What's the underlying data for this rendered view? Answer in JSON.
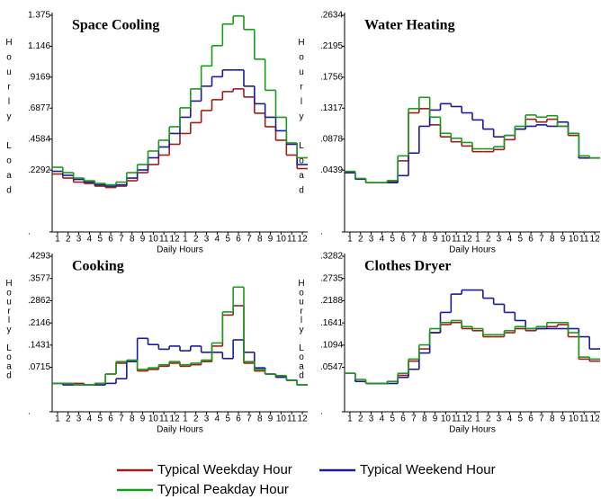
{
  "chart_data": [
    {
      "type": "line",
      "title": "Space Cooling",
      "y_label": "Hourly Load",
      "x_label": "Daily Hours",
      "categories": [
        "1",
        "2",
        "3",
        "4",
        "5",
        "6",
        "7",
        "8",
        "9",
        "10",
        "11",
        "12",
        "1",
        "2",
        "3",
        "4",
        "5",
        "6",
        "7",
        "8",
        "9",
        "10",
        "11",
        "12"
      ],
      "ylim": [
        -0.2292,
        1.375
      ],
      "yticks": [
        {
          "value": -0.2292,
          "label": "."
        },
        {
          "value": 0.2292,
          "label": ".2292"
        },
        {
          "value": 0.4584,
          "label": ".4584"
        },
        {
          "value": 0.6877,
          "label": ".6877"
        },
        {
          "value": 0.9169,
          "label": ".9169"
        },
        1.146,
        1.375
      ],
      "series": [
        {
          "color": "#a01c1c",
          "values": [
            0.2,
            0.17,
            0.14,
            0.13,
            0.11,
            0.1,
            0.11,
            0.15,
            0.21,
            0.27,
            0.34,
            0.42,
            0.5,
            0.58,
            0.67,
            0.75,
            0.81,
            0.83,
            0.77,
            0.65,
            0.55,
            0.45,
            0.34,
            0.24
          ]
        },
        {
          "color": "#1a1a9a",
          "values": [
            0.22,
            0.19,
            0.16,
            0.14,
            0.12,
            0.11,
            0.12,
            0.17,
            0.23,
            0.32,
            0.4,
            0.5,
            0.62,
            0.74,
            0.85,
            0.92,
            0.97,
            0.97,
            0.85,
            0.72,
            0.62,
            0.52,
            0.42,
            0.27
          ]
        },
        {
          "color": "#1a9a1a",
          "values": [
            0.25,
            0.21,
            0.17,
            0.15,
            0.13,
            0.12,
            0.14,
            0.21,
            0.27,
            0.37,
            0.45,
            0.55,
            0.69,
            0.83,
            1.0,
            1.15,
            1.31,
            1.37,
            1.27,
            1.05,
            0.82,
            0.62,
            0.43,
            0.32
          ]
        }
      ]
    },
    {
      "type": "line",
      "title": "Water Heating",
      "y_label": "Hourly Load",
      "x_label": "Daily Hours",
      "categories": [
        "1",
        "2",
        "3",
        "4",
        "5",
        "6",
        "7",
        "8",
        "9",
        "10",
        "11",
        "12",
        "1",
        "2",
        "3",
        "4",
        "5",
        "6",
        "7",
        "8",
        "9",
        "10",
        "11",
        "12"
      ],
      "ylim": [
        -0.0439,
        0.2634
      ],
      "yticks": [
        {
          "value": -0.0439,
          "label": "."
        },
        {
          "value": 0.0439,
          "label": ".0439"
        },
        {
          "value": 0.0878,
          "label": ".0878"
        },
        {
          "value": 0.1317,
          "label": ".1317"
        },
        {
          "value": 0.1756,
          "label": ".1756"
        },
        {
          "value": 0.2195,
          "label": ".2195"
        },
        {
          "value": 0.2634,
          "label": ".2634"
        }
      ],
      "series": [
        {
          "color": "#a01c1c",
          "values": [
            0.04,
            0.031,
            0.026,
            0.026,
            0.027,
            0.057,
            0.125,
            0.131,
            0.108,
            0.091,
            0.084,
            0.078,
            0.07,
            0.07,
            0.073,
            0.087,
            0.102,
            0.116,
            0.112,
            0.116,
            0.106,
            0.093,
            0.061,
            0.061
          ]
        },
        {
          "color": "#1a1a9a",
          "values": [
            0.04,
            0.031,
            0.026,
            0.026,
            0.026,
            0.036,
            0.068,
            0.106,
            0.129,
            0.138,
            0.134,
            0.125,
            0.115,
            0.102,
            0.091,
            0.093,
            0.102,
            0.106,
            0.108,
            0.106,
            0.112,
            0.096,
            0.061,
            0.061
          ]
        },
        {
          "color": "#1a9a1a",
          "values": [
            0.042,
            0.032,
            0.026,
            0.026,
            0.029,
            0.064,
            0.131,
            0.147,
            0.119,
            0.096,
            0.089,
            0.083,
            0.074,
            0.074,
            0.077,
            0.093,
            0.106,
            0.122,
            0.119,
            0.121,
            0.106,
            0.096,
            0.064,
            0.061
          ]
        }
      ]
    },
    {
      "type": "line",
      "title": "Cooking",
      "y_label": "Hourly Load",
      "x_label": "Daily Hours",
      "categories": [
        "1",
        "2",
        "3",
        "4",
        "5",
        "6",
        "7",
        "8",
        "9",
        "10",
        "11",
        "12",
        "1",
        "2",
        "3",
        "4",
        "5",
        "6",
        "7",
        "8",
        "9",
        "10",
        "11",
        "12"
      ],
      "ylim": [
        -0.0715,
        0.4293
      ],
      "yticks": [
        {
          "value": -0.0715,
          "label": "."
        },
        {
          "value": 0.0715,
          "label": ".0715"
        },
        {
          "value": 0.1431,
          "label": ".1431"
        },
        {
          "value": 0.2146,
          "label": ".2146"
        },
        {
          "value": 0.2862,
          "label": ".2862"
        },
        {
          "value": 0.3577,
          "label": ".3577"
        },
        {
          "value": 0.4293,
          "label": ".4293"
        }
      ],
      "series": [
        {
          "color": "#a01c1c",
          "values": [
            0.02,
            0.02,
            0.02,
            0.015,
            0.02,
            0.05,
            0.085,
            0.09,
            0.06,
            0.065,
            0.075,
            0.085,
            0.075,
            0.08,
            0.09,
            0.14,
            0.24,
            0.27,
            0.085,
            0.06,
            0.05,
            0.04,
            0.03,
            0.015
          ]
        },
        {
          "color": "#1a1a9a",
          "values": [
            0.02,
            0.015,
            0.015,
            0.015,
            0.015,
            0.02,
            0.035,
            0.09,
            0.165,
            0.145,
            0.13,
            0.14,
            0.125,
            0.14,
            0.12,
            0.12,
            0.1,
            0.16,
            0.12,
            0.07,
            0.05,
            0.04,
            0.03,
            0.015
          ]
        },
        {
          "color": "#1a9a1a",
          "values": [
            0.02,
            0.02,
            0.015,
            0.015,
            0.02,
            0.05,
            0.09,
            0.095,
            0.065,
            0.07,
            0.08,
            0.09,
            0.08,
            0.085,
            0.095,
            0.15,
            0.25,
            0.33,
            0.09,
            0.065,
            0.05,
            0.045,
            0.03,
            0.015
          ]
        }
      ]
    },
    {
      "type": "line",
      "title": "Clothes Dryer",
      "y_label": "Hourly Load",
      "x_label": "Daily Hours",
      "categories": [
        "1",
        "2",
        "3",
        "4",
        "5",
        "6",
        "7",
        "8",
        "9",
        "10",
        "11",
        "12",
        "1",
        "2",
        "3",
        "4",
        "5",
        "6",
        "7",
        "8",
        "9",
        "10",
        "11",
        "12"
      ],
      "ylim": [
        -0.0547,
        0.3282
      ],
      "yticks": [
        {
          "value": -0.0547,
          "label": "."
        },
        {
          "value": 0.0547,
          "label": ".0547"
        },
        {
          "value": 0.1094,
          "label": ".1094"
        },
        {
          "value": 0.1641,
          "label": ".1641"
        },
        {
          "value": 0.2188,
          "label": ".2188"
        },
        {
          "value": 0.2735,
          "label": ".2735"
        },
        {
          "value": 0.3282,
          "label": ".3282"
        }
      ],
      "series": [
        {
          "color": "#a01c1c",
          "values": [
            0.04,
            0.02,
            0.015,
            0.015,
            0.02,
            0.035,
            0.07,
            0.1,
            0.14,
            0.16,
            0.165,
            0.15,
            0.145,
            0.13,
            0.13,
            0.14,
            0.15,
            0.145,
            0.15,
            0.155,
            0.16,
            0.13,
            0.075,
            0.07
          ]
        },
        {
          "color": "#1a1a9a",
          "values": [
            0.04,
            0.02,
            0.015,
            0.015,
            0.015,
            0.03,
            0.05,
            0.09,
            0.14,
            0.19,
            0.235,
            0.245,
            0.245,
            0.225,
            0.21,
            0.19,
            0.17,
            0.15,
            0.15,
            0.15,
            0.15,
            0.15,
            0.13,
            0.1
          ]
        },
        {
          "color": "#1a9a1a",
          "values": [
            0.04,
            0.025,
            0.015,
            0.015,
            0.02,
            0.04,
            0.075,
            0.11,
            0.15,
            0.165,
            0.17,
            0.155,
            0.15,
            0.135,
            0.135,
            0.145,
            0.155,
            0.15,
            0.155,
            0.165,
            0.165,
            0.14,
            0.08,
            0.075
          ]
        }
      ]
    }
  ],
  "legend": [
    {
      "name": "Typical Weekday Hour",
      "color": "#a01c1c"
    },
    {
      "name": "Typical Weekend Hour",
      "color": "#1a1a9a"
    },
    {
      "name": "Typical Peakday Hour",
      "color": "#1a9a1a"
    }
  ]
}
